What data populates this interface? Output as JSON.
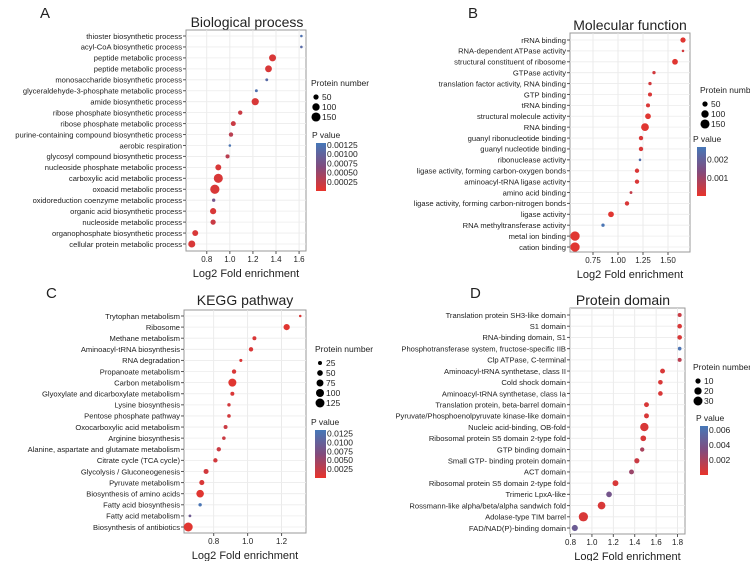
{
  "chart_data": [
    {
      "type": "scatter",
      "panel_letter": "A",
      "title": "Biological process",
      "xlabel": "Log2 Fold enrichment",
      "xlim": [
        0.62,
        1.66
      ],
      "xticks": [
        0.8,
        1.0,
        1.2,
        1.4,
        1.6
      ],
      "xtick_labels": [
        "0.8",
        "1.0",
        "1.2",
        "1.4",
        "1.6"
      ],
      "grid": true,
      "size_legend_title": "Protein number",
      "size_legend": [
        50,
        100,
        150
      ],
      "size_legend_labels": [
        "50",
        "100",
        "150"
      ],
      "color_legend_title": "P value",
      "color_max": 0.0013,
      "color_legend": [
        0.00125,
        0.001,
        0.00075,
        0.0005,
        0.00025
      ],
      "color_legend_labels": [
        "0.00125",
        "0.00100",
        "0.00075",
        "0.00050",
        "0.00025"
      ],
      "categories": [
        "thioster biosynthetic process",
        "acyl-CoA biosynthetic process",
        "peptide metabolic process",
        "peptide metabolic process",
        "monosaccharide biosynthetic process",
        "glyceraldehyde-3-phosphate metabolic process",
        "amide biosynthetic process",
        "ribose phosphate biosynthetic process",
        "ribose phosphate metabolic process",
        "purine-containing compound biosynthetic process",
        "aerobic respiration",
        "glycosyl compound biosynthetic process",
        "nucleoside phosphate metabolic process",
        "carboxylic acid metabolic process",
        "oxoacid metabolic process",
        "oxidoreduction coenzyme metabolic process",
        "organic acid biosynthetic process",
        "nucleoside metabolic process",
        "organophosphate biosynthetic process",
        "cellular protein metabolic process"
      ],
      "values": [
        1.62,
        1.62,
        1.37,
        1.335,
        1.32,
        1.23,
        1.22,
        1.09,
        1.03,
        1.01,
        1.0,
        0.98,
        0.9,
        0.9,
        0.87,
        0.86,
        0.855,
        0.855,
        0.7,
        0.67
      ],
      "protein_number": [
        12,
        12,
        90,
        85,
        15,
        15,
        95,
        35,
        45,
        35,
        12,
        30,
        65,
        150,
        155,
        20,
        70,
        50,
        65,
        90
      ],
      "p_value": [
        0.0012,
        0.0011,
        0.0001,
        0.0001,
        0.0011,
        0.0012,
        0.0001,
        0.0002,
        0.0002,
        0.0003,
        0.00125,
        0.0003,
        0.0001,
        0.0001,
        0.0001,
        0.0008,
        0.0001,
        0.0002,
        0.0001,
        0.0001
      ]
    },
    {
      "type": "scatter",
      "panel_letter": "B",
      "title": "Molecular function",
      "xlabel": "Log2 Fold enrichment",
      "xlim": [
        0.52,
        1.72
      ],
      "xticks": [
        0.75,
        1.0,
        1.25,
        1.5
      ],
      "xtick_labels": [
        "0.75",
        "1.00",
        "1.25",
        "1.50"
      ],
      "grid": true,
      "size_legend_title": "Protein number",
      "size_legend": [
        50,
        100,
        150
      ],
      "size_legend_labels": [
        "50",
        "100",
        "150"
      ],
      "color_legend_title": "P value",
      "color_max": 0.0027,
      "color_legend": [
        0.002,
        0.001
      ],
      "color_legend_labels": [
        "0.002",
        "0.001"
      ],
      "categories": [
        "rRNA binding",
        "RNA-dependent ATPase activity",
        "structural constituent of ribosome",
        "GTPase activity",
        "translation factor activity, RNA binding",
        "GTP binding",
        "tRNA binding",
        "structural molecule activity",
        "RNA binding",
        "guanyl ribonucleotide binding",
        "guanyl nucleotide binding",
        "ribonuclease activity",
        "ligase activity, forming carbon-oxygen bonds",
        "aminoacyl-tRNA ligase activity",
        "amino acid binding",
        "ligase activity, forming carbon-nitrogen bonds",
        "ligase activity",
        "RNA methyltransferase activity",
        "metal ion binding",
        "cation binding"
      ],
      "values": [
        1.65,
        1.65,
        1.57,
        1.36,
        1.32,
        1.32,
        1.3,
        1.3,
        1.27,
        1.23,
        1.23,
        1.22,
        1.19,
        1.19,
        1.13,
        1.09,
        0.93,
        0.85,
        0.57,
        0.57
      ],
      "protein_number": [
        50,
        12,
        60,
        20,
        20,
        30,
        30,
        60,
        110,
        35,
        35,
        12,
        35,
        35,
        15,
        35,
        60,
        20,
        160,
        160
      ],
      "p_value": [
        0.0001,
        0.0003,
        0.0001,
        0.0003,
        0.0003,
        0.0002,
        0.0002,
        0.0001,
        0.0001,
        0.0002,
        0.0002,
        0.0024,
        0.0002,
        0.0002,
        0.0005,
        0.0002,
        0.0001,
        0.0026,
        0.0001,
        0.0001
      ]
    },
    {
      "type": "scatter",
      "panel_letter": "C",
      "title": "KEGG pathway",
      "xlabel": "Log2 Fold enrichment",
      "xlim": [
        0.625,
        1.344
      ],
      "xticks": [
        0.8,
        1.0,
        1.2
      ],
      "xtick_labels": [
        "0.8",
        "1.0",
        "1.2"
      ],
      "grid": true,
      "size_legend_title": "Protein number",
      "size_legend": [
        25,
        50,
        75,
        100,
        125
      ],
      "size_legend_labels": [
        "25",
        "50",
        "75",
        "100",
        "125"
      ],
      "color_legend_title": "P value",
      "color_max": 0.0135,
      "color_legend": [
        0.0125,
        0.01,
        0.0075,
        0.005,
        0.0025
      ],
      "color_legend_labels": [
        "0.0125",
        "0.0100",
        "0.0075",
        "0.0050",
        "0.0025"
      ],
      "categories": [
        "Trytophan metabolism",
        "Ribosome",
        "Methane metabolism",
        "Aminoacyl-tRNA biosynthesis",
        "RNA degradation",
        "Propanoate metabolism",
        "Carbon metabolism",
        "Glyoxylate and dicarboxylate metabolism",
        "Lysine biosynthesis",
        "Pentose phosphate pathway",
        "Oxocarboxylic acid metabolism",
        "Arginine biosynthesis",
        "Alanine, aspartate and glutamate metabolism",
        "Citrate cycle (TCA cycle)",
        "Glycolysis / Gluconeogenesis",
        "Pyruvate metabolism",
        "Biosynthesis of amino acids",
        "Fatty acid biosynthesis",
        "Fatty acid metabolism",
        "Biosynthesis of antibiotics"
      ],
      "values": [
        1.31,
        1.23,
        1.04,
        1.02,
        0.96,
        0.92,
        0.91,
        0.91,
        0.89,
        0.89,
        0.87,
        0.86,
        0.83,
        0.81,
        0.755,
        0.73,
        0.72,
        0.72,
        0.66,
        0.65
      ],
      "protein_number": [
        10,
        60,
        25,
        30,
        15,
        30,
        100,
        25,
        18,
        20,
        25,
        20,
        30,
        30,
        40,
        40,
        90,
        18,
        12,
        125
      ],
      "p_value": [
        0.001,
        0.0005,
        0.001,
        0.001,
        0.001,
        0.001,
        0.0005,
        0.001,
        0.0015,
        0.0015,
        0.002,
        0.002,
        0.002,
        0.0015,
        0.0015,
        0.001,
        0.0005,
        0.013,
        0.009,
        0.0005
      ]
    },
    {
      "type": "scatter",
      "panel_letter": "D",
      "title": "Protein domain",
      "xlabel": "Log2 Fold enrichment",
      "xlim": [
        0.795,
        1.87
      ],
      "xticks": [
        0.8,
        1.0,
        1.2,
        1.4,
        1.6,
        1.8
      ],
      "xtick_labels": [
        "0.8",
        "1.0",
        "1.2",
        "1.4",
        "1.6",
        "1.8"
      ],
      "grid": true,
      "size_legend_title": "Protein number",
      "size_legend": [
        10,
        20,
        30
      ],
      "size_legend_labels": [
        "10",
        "20",
        "30"
      ],
      "color_legend_title": "P value",
      "color_max": 0.0065,
      "color_legend": [
        0.006,
        0.004,
        0.002
      ],
      "color_legend_labels": [
        "0.006",
        "0.004",
        "0.002"
      ],
      "categories": [
        "Translation protein SH3-like domain",
        "S1 domain",
        "RNA-binding domain, S1",
        "Phosphotransferase system, fructose-specific IIB",
        "Clp ATPase, C-terminal",
        "Aminoacyl-tRNA synthetase, class II",
        "Cold shock domain",
        "Aminoacyl-tRNA synthetase, class Ia",
        "Translation protein, beta-barrel domain",
        "Pyruvate/Phosphoenolpyruvate kinase-like domain",
        "Nucleic acid-binding, OB-fold",
        "Ribosomal protein S5 domain 2-type fold",
        "GTP binding domain",
        "Small GTP- binding protein domain",
        "ACT domain",
        "Ribosomal protein S5 domain 2-type fold",
        "Trimeric LpxA-like",
        "Rossmann-like alpha/beta/alpha sandwich fold",
        "Adolase-type TIM barrel",
        "FAD/NAD(P)-binding domain"
      ],
      "values": [
        1.82,
        1.82,
        1.82,
        1.82,
        1.82,
        1.66,
        1.64,
        1.64,
        1.51,
        1.51,
        1.49,
        1.48,
        1.47,
        1.42,
        1.37,
        1.22,
        1.16,
        1.09,
        0.92,
        0.84
      ],
      "protein_number": [
        6,
        8,
        8,
        5,
        6,
        9,
        8,
        8,
        9,
        9,
        26,
        12,
        7,
        10,
        9,
        13,
        12,
        22,
        32,
        14
      ],
      "p_value": [
        0.001,
        0.0005,
        0.0005,
        0.0062,
        0.0015,
        0.0005,
        0.0005,
        0.0005,
        0.0005,
        0.0005,
        0.0005,
        0.0005,
        0.002,
        0.001,
        0.0025,
        0.0005,
        0.004,
        0.0005,
        0.0005,
        0.0045
      ]
    }
  ]
}
